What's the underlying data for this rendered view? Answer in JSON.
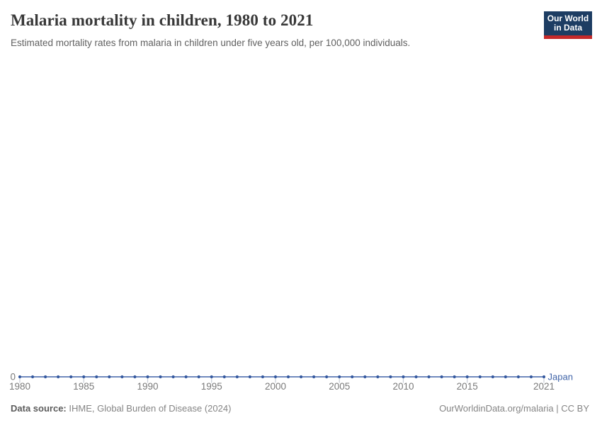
{
  "header": {
    "title": "Malaria mortality in children, 1980 to 2021",
    "subtitle": "Estimated mortality rates from malaria in children under five years old, per 100,000 individuals."
  },
  "logo": {
    "line1": "Our World",
    "line2": "in Data"
  },
  "chart_data": {
    "type": "line",
    "title": "Malaria mortality in children, 1980 to 2021",
    "xlabel": "",
    "ylabel": "",
    "x": [
      1980,
      1981,
      1982,
      1983,
      1984,
      1985,
      1986,
      1987,
      1988,
      1989,
      1990,
      1991,
      1992,
      1993,
      1994,
      1995,
      1996,
      1997,
      1998,
      1999,
      2000,
      2001,
      2002,
      2003,
      2004,
      2005,
      2006,
      2007,
      2008,
      2009,
      2010,
      2011,
      2012,
      2013,
      2014,
      2015,
      2016,
      2017,
      2018,
      2019,
      2020,
      2021
    ],
    "series": [
      {
        "name": "Japan",
        "values": [
          0,
          0,
          0,
          0,
          0,
          0,
          0,
          0,
          0,
          0,
          0,
          0,
          0,
          0,
          0,
          0,
          0,
          0,
          0,
          0,
          0,
          0,
          0,
          0,
          0,
          0,
          0,
          0,
          0,
          0,
          0,
          0,
          0,
          0,
          0,
          0,
          0,
          0,
          0,
          0,
          0,
          0
        ]
      }
    ],
    "x_tick_labels": [
      "1980",
      "1985",
      "1990",
      "1995",
      "2000",
      "2005",
      "2010",
      "2015",
      "2021"
    ],
    "y_tick_labels": [
      "0"
    ],
    "ylim": [
      0,
      0
    ],
    "grid": false,
    "legend": "label-at-line-end"
  },
  "footer": {
    "source_label": "Data source:",
    "source_text": "IHME, Global Burden of Disease (2024)",
    "attribution": "OurWorldinData.org/malaria | CC BY"
  },
  "colors": {
    "series": "#4064a8",
    "point": "#35599f",
    "tick": "#c9ced6",
    "axis_text": "#7a7a7a",
    "title": "#383838",
    "subtitle": "#606060",
    "footer_text": "#858585",
    "footer_label": "#5c5c5c",
    "logo_bg": "#1d3d63",
    "logo_red": "#c5292a"
  }
}
